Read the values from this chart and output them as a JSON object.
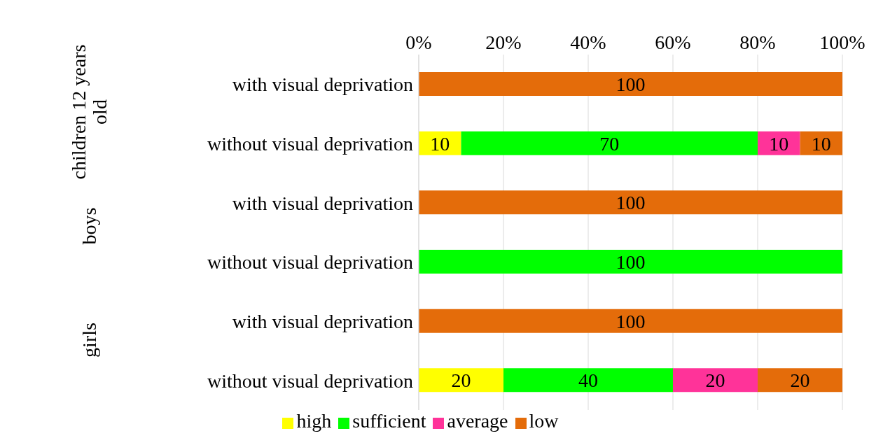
{
  "chart_data": {
    "type": "bar",
    "orientation": "horizontal",
    "stacked": true,
    "categories": [
      "with visual deprivation",
      "without visual deprivation",
      "with visual deprivation",
      "without visual deprivation",
      "with visual deprivation",
      "without visual deprivation"
    ],
    "series": [
      {
        "name": "high",
        "color": "#ffff00",
        "values": [
          null,
          10,
          null,
          null,
          null,
          20
        ]
      },
      {
        "name": "sufficient",
        "color": "#00ff00",
        "values": [
          null,
          70,
          null,
          100,
          null,
          40
        ]
      },
      {
        "name": "average",
        "color": "#ff3399",
        "values": [
          null,
          10,
          null,
          null,
          null,
          20
        ]
      },
      {
        "name": "low",
        "color": "#e46c0a",
        "values": [
          100,
          10,
          100,
          null,
          100,
          20
        ]
      }
    ],
    "annotations": [
      "children 12 years old",
      "boys",
      "girls"
    ],
    "xlim": [
      0,
      100
    ],
    "xticks": [
      {
        "value": 0,
        "label": "0%"
      },
      {
        "value": 20,
        "label": "20%"
      },
      {
        "value": 40,
        "label": "40%"
      },
      {
        "value": 60,
        "label": "60%"
      },
      {
        "value": 80,
        "label": "80%"
      },
      {
        "value": 100,
        "label": "100%"
      }
    ],
    "grid": "x",
    "legend": "bottom",
    "data_labels": true
  }
}
